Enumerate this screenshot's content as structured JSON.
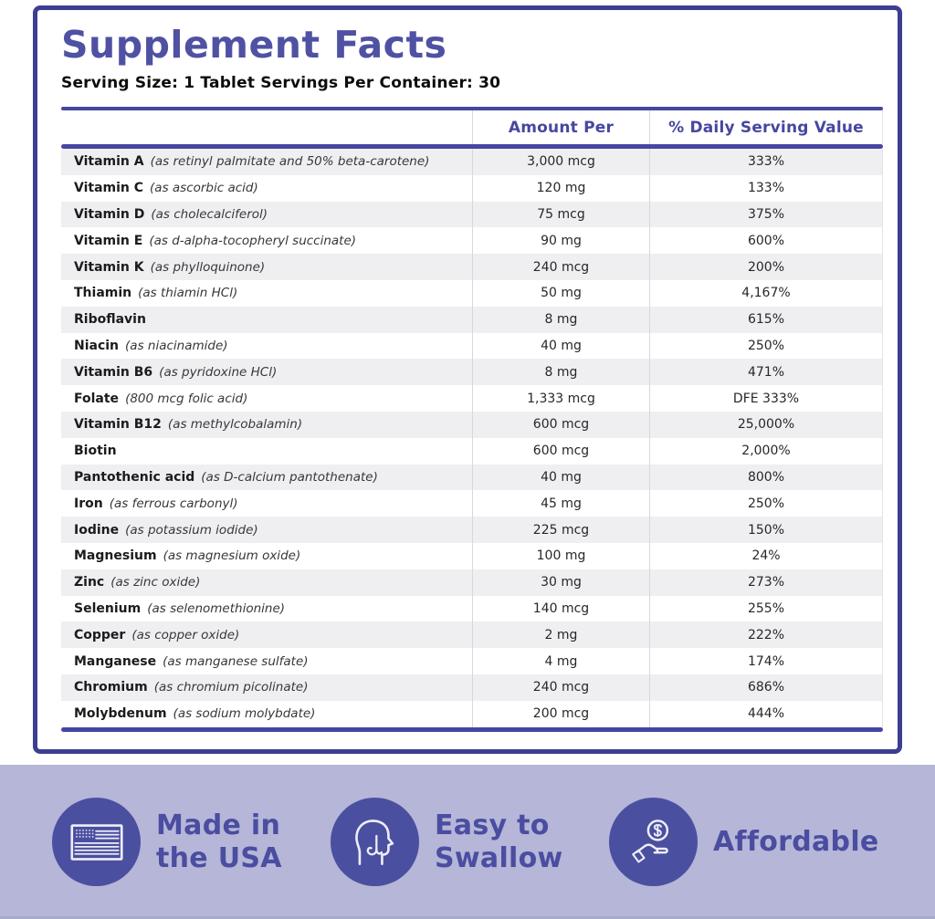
{
  "panel": {
    "title": "Supplement Facts",
    "serving_line": "Serving Size: 1 Tablet Servings Per Container: 30"
  },
  "table": {
    "headers": {
      "amount": "Amount Per",
      "daily_value": "% Daily Serving Value"
    },
    "rows": [
      {
        "name": "Vitamin A",
        "detail": "(as retinyl palmitate and 50% beta-carotene)",
        "amount": "3,000 mcg",
        "dv": "333%"
      },
      {
        "name": "Vitamin C",
        "detail": "(as ascorbic acid)",
        "amount": "120 mg",
        "dv": "133%"
      },
      {
        "name": "Vitamin D",
        "detail": "(as cholecalciferol)",
        "amount": "75 mcg",
        "dv": "375%"
      },
      {
        "name": "Vitamin E",
        "detail": "(as d-alpha-tocopheryl succinate)",
        "amount": "90 mg",
        "dv": "600%"
      },
      {
        "name": "Vitamin K",
        "detail": "(as phylloquinone)",
        "amount": "240 mcg",
        "dv": "200%"
      },
      {
        "name": "Thiamin",
        "detail": "(as thiamin HCl)",
        "amount": "50 mg",
        "dv": "4,167%"
      },
      {
        "name": "Riboflavin",
        "detail": "",
        "amount": "8 mg",
        "dv": "615%"
      },
      {
        "name": "Niacin",
        "detail": "(as niacinamide)",
        "amount": "40 mg",
        "dv": "250%"
      },
      {
        "name": "Vitamin B6",
        "detail": "(as pyridoxine HCl)",
        "amount": "8 mg",
        "dv": "471%"
      },
      {
        "name": "Folate",
        "detail": "(800 mcg folic acid)",
        "amount": "1,333 mcg",
        "dv": "DFE 333%"
      },
      {
        "name": "Vitamin B12",
        "detail": "(as methylcobalamin)",
        "amount": "600 mcg",
        "dv": "25,000%"
      },
      {
        "name": "Biotin",
        "detail": "",
        "amount": "600 mcg",
        "dv": "2,000%"
      },
      {
        "name": "Pantothenic acid",
        "detail": "(as D-calcium pantothenate)",
        "amount": "40 mg",
        "dv": "800%"
      },
      {
        "name": "Iron",
        "detail": "(as ferrous carbonyl)",
        "amount": "45 mg",
        "dv": "250%"
      },
      {
        "name": "Iodine",
        "detail": "(as potassium iodide)",
        "amount": "225 mcg",
        "dv": "150%"
      },
      {
        "name": "Magnesium",
        "detail": "(as magnesium oxide)",
        "amount": "100 mg",
        "dv": "24%"
      },
      {
        "name": "Zinc",
        "detail": "(as zinc oxide)",
        "amount": "30 mg",
        "dv": "273%"
      },
      {
        "name": "Selenium",
        "detail": "(as selenomethionine)",
        "amount": "140 mcg",
        "dv": "255%"
      },
      {
        "name": "Copper",
        "detail": "(as copper oxide)",
        "amount": "2 mg",
        "dv": "222%"
      },
      {
        "name": "Manganese",
        "detail": "(as manganese sulfate)",
        "amount": "4 mg",
        "dv": "174%"
      },
      {
        "name": "Chromium",
        "detail": "(as chromium picolinate)",
        "amount": "240 mcg",
        "dv": "686%"
      },
      {
        "name": "Molybdenum",
        "detail": "(as sodium molybdate)",
        "amount": "200 mcg",
        "dv": "444%"
      }
    ]
  },
  "badges": [
    {
      "icon": "usa-flag-icon",
      "lines": [
        "Made in",
        "the USA"
      ]
    },
    {
      "icon": "easy-swallow-icon",
      "lines": [
        "Easy to",
        "Swallow"
      ]
    },
    {
      "icon": "affordable-icon",
      "lines": [
        "Affordable"
      ]
    }
  ],
  "colors": {
    "brand_indigo": "#4547a0",
    "panel_border": "#3c3e90",
    "title_purple": "#4f51a3",
    "row_alt_gray": "#efeff1",
    "lavender_bg": "#b5b6d8",
    "badge_circle": "#4b4f9f"
  }
}
